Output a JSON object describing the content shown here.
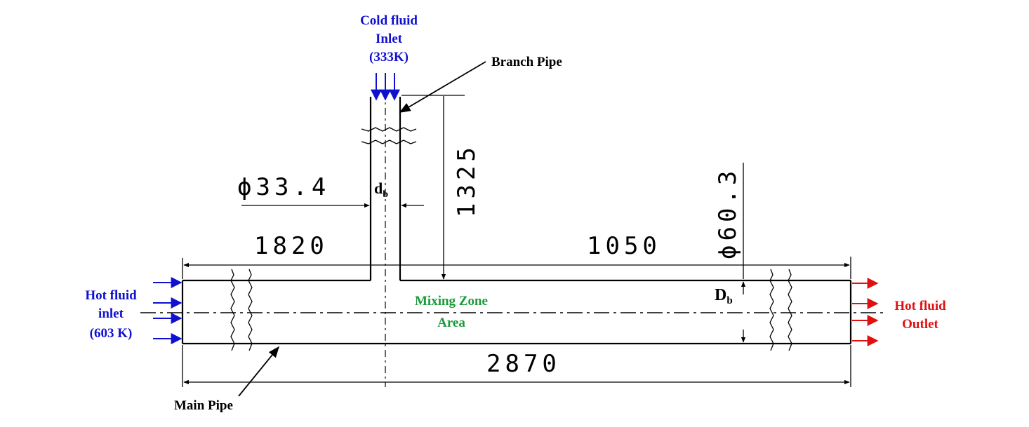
{
  "labels": {
    "cold_inlet": [
      "Cold fluid",
      "Inlet",
      "(333K)"
    ],
    "branch_pipe": "Branch Pipe",
    "hot_inlet": [
      "Hot fluid",
      "inlet",
      "(603 K)"
    ],
    "hot_outlet": [
      "Hot fluid",
      "Outlet"
    ],
    "mixing_zone": [
      "Mixing Zone",
      "Area"
    ],
    "main_pipe": "Main Pipe",
    "db_branch": "d",
    "db_branch_sub": "b",
    "db_main": "D",
    "db_main_sub": "b"
  },
  "dimensions": {
    "branch_diameter": "ϕ33.4",
    "branch_length": "1325",
    "left_length": "1820",
    "right_length": "1050",
    "main_diameter": "ϕ60.3",
    "total_length": "2870"
  },
  "colors": {
    "cold": "#1010d0",
    "hot_out": "#e01010",
    "mixing": "#1a9a3a",
    "line": "#000000"
  }
}
